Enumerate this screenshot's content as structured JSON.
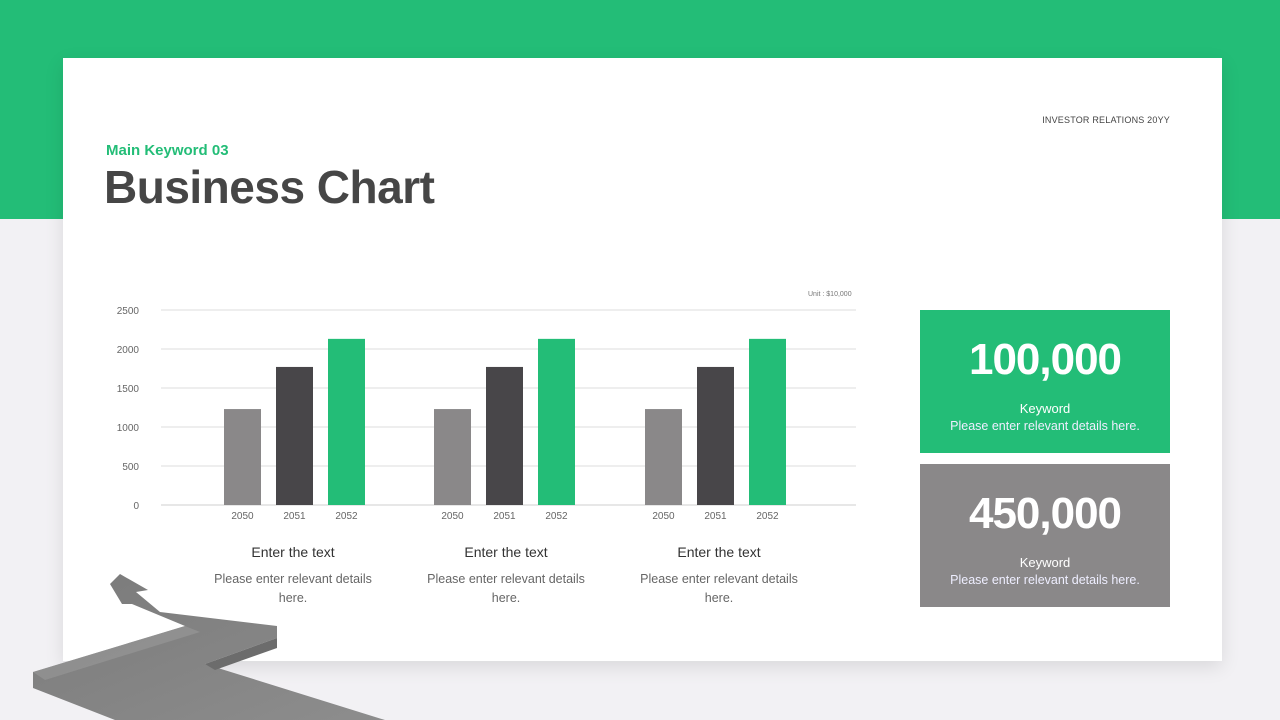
{
  "header": {
    "tag": "INVESTOR RELATIONS 20YY",
    "subtitle": "Main Keyword 03",
    "title": "Business Chart"
  },
  "colors": {
    "accent": "#23bd77",
    "dark_bar": "#484649",
    "light_bar": "#8a8889",
    "title": "#464646"
  },
  "chart_data": {
    "type": "bar",
    "unit": "Unit : $10,000",
    "y_ticks": [
      "0",
      "500",
      "1000",
      "1500",
      "2000",
      "2500"
    ],
    "ylim": [
      0,
      2500
    ],
    "grid": true,
    "groups": [
      {
        "categories": [
          "2050",
          "2051",
          "2052"
        ],
        "values": [
          1230,
          1770,
          2130
        ]
      },
      {
        "categories": [
          "2050",
          "2051",
          "2052"
        ],
        "values": [
          1230,
          1770,
          2130
        ]
      },
      {
        "categories": [
          "2050",
          "2051",
          "2052"
        ],
        "values": [
          1230,
          1770,
          2130
        ]
      }
    ]
  },
  "chart_groups": [
    {
      "title": "Enter the text",
      "desc": "Please enter relevant details here."
    },
    {
      "title": "Enter the text",
      "desc": "Please enter relevant details here."
    },
    {
      "title": "Enter the text",
      "desc": "Please enter relevant details here."
    }
  ],
  "stats": [
    {
      "value": "100,000",
      "label": "Keyword",
      "desc": "Please enter relevant details here."
    },
    {
      "value": "450,000",
      "label": "Keyword",
      "desc": "Please enter relevant details here."
    }
  ]
}
